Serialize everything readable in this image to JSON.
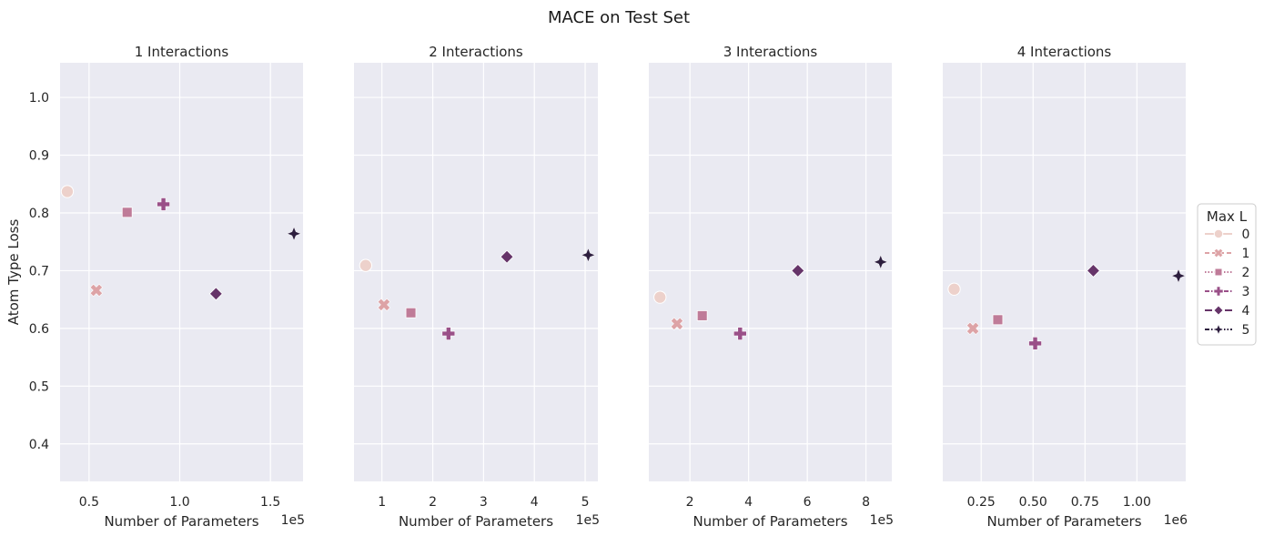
{
  "figure_title": "MACE on Test Set",
  "legend": {
    "title": "Max L",
    "entries": [
      {
        "label": "0",
        "color": "#edd1cb",
        "marker": "circle",
        "dash": "solid"
      },
      {
        "label": "1",
        "color": "#dda3a6",
        "marker": "x",
        "dash": "dashed"
      },
      {
        "label": "2",
        "color": "#bf7b98",
        "marker": "square",
        "dash": "dotted"
      },
      {
        "label": "3",
        "color": "#9a5088",
        "marker": "plus",
        "dash": "dashdot"
      },
      {
        "label": "4",
        "color": "#663469",
        "marker": "diamond",
        "dash": "longdash"
      },
      {
        "label": "5",
        "color": "#2d1e3e",
        "marker": "star4",
        "dash": "dashdotdot"
      }
    ]
  },
  "chart_data": [
    {
      "type": "scatter",
      "title": "1 Interactions",
      "xlabel": "Number of Parameters",
      "ylabel": "Atom Type Loss",
      "x_multiplier_label": "1e5",
      "xlim": [
        0.34,
        1.68
      ],
      "ylim": [
        0.335,
        1.06
      ],
      "xticks": [
        0.5,
        1.0,
        1.5
      ],
      "xtick_labels": [
        "0.5",
        "1.0",
        "1.5"
      ],
      "yticks": [
        0.4,
        0.5,
        0.6,
        0.7,
        0.8,
        0.9,
        1.0
      ],
      "ytick_labels": [
        "0.4",
        "0.5",
        "0.6",
        "0.7",
        "0.8",
        "0.9",
        "1.0"
      ],
      "grid": true,
      "points": [
        {
          "max_l": 0,
          "x": 0.38,
          "y": 0.837
        },
        {
          "max_l": 1,
          "x": 0.54,
          "y": 0.666
        },
        {
          "max_l": 2,
          "x": 0.71,
          "y": 0.801
        },
        {
          "max_l": 3,
          "x": 0.91,
          "y": 0.815
        },
        {
          "max_l": 4,
          "x": 1.2,
          "y": 0.66
        },
        {
          "max_l": 5,
          "x": 1.63,
          "y": 0.764
        }
      ]
    },
    {
      "type": "scatter",
      "title": "2 Interactions",
      "xlabel": "Number of Parameters",
      "ylabel": "",
      "x_multiplier_label": "1e5",
      "xlim": [
        0.45,
        5.25
      ],
      "ylim": [
        0.335,
        1.06
      ],
      "xticks": [
        1,
        2,
        3,
        4,
        5
      ],
      "xtick_labels": [
        "1",
        "2",
        "3",
        "4",
        "5"
      ],
      "yticks": [
        0.4,
        0.5,
        0.6,
        0.7,
        0.8,
        0.9,
        1.0
      ],
      "ytick_labels": [],
      "grid": true,
      "points": [
        {
          "max_l": 0,
          "x": 0.68,
          "y": 0.709
        },
        {
          "max_l": 1,
          "x": 1.04,
          "y": 0.641
        },
        {
          "max_l": 2,
          "x": 1.57,
          "y": 0.627
        },
        {
          "max_l": 3,
          "x": 2.31,
          "y": 0.591
        },
        {
          "max_l": 4,
          "x": 3.46,
          "y": 0.724
        },
        {
          "max_l": 5,
          "x": 5.06,
          "y": 0.727
        }
      ]
    },
    {
      "type": "scatter",
      "title": "3 Interactions",
      "xlabel": "Number of Parameters",
      "ylabel": "",
      "x_multiplier_label": "1e5",
      "xlim": [
        0.6,
        8.88
      ],
      "ylim": [
        0.335,
        1.06
      ],
      "xticks": [
        2,
        4,
        6,
        8
      ],
      "xtick_labels": [
        "2",
        "4",
        "6",
        "8"
      ],
      "yticks": [
        0.4,
        0.5,
        0.6,
        0.7,
        0.8,
        0.9,
        1.0
      ],
      "ytick_labels": [],
      "grid": true,
      "points": [
        {
          "max_l": 0,
          "x": 0.98,
          "y": 0.654
        },
        {
          "max_l": 1,
          "x": 1.56,
          "y": 0.608
        },
        {
          "max_l": 2,
          "x": 2.42,
          "y": 0.622
        },
        {
          "max_l": 3,
          "x": 3.71,
          "y": 0.591
        },
        {
          "max_l": 4,
          "x": 5.68,
          "y": 0.7
        },
        {
          "max_l": 5,
          "x": 8.5,
          "y": 0.715
        }
      ]
    },
    {
      "type": "scatter",
      "title": "4 Interactions",
      "xlabel": "Number of Parameters",
      "ylabel": "",
      "x_multiplier_label": "1e6",
      "xlim": [
        0.065,
        1.235
      ],
      "ylim": [
        0.335,
        1.06
      ],
      "xticks": [
        0.25,
        0.5,
        0.75,
        1.0
      ],
      "xtick_labels": [
        "0.25",
        "0.50",
        "0.75",
        "1.00"
      ],
      "yticks": [
        0.4,
        0.5,
        0.6,
        0.7,
        0.8,
        0.9,
        1.0
      ],
      "ytick_labels": [],
      "grid": true,
      "points": [
        {
          "max_l": 0,
          "x": 0.12,
          "y": 0.668
        },
        {
          "max_l": 1,
          "x": 0.21,
          "y": 0.6
        },
        {
          "max_l": 2,
          "x": 0.33,
          "y": 0.615
        },
        {
          "max_l": 3,
          "x": 0.51,
          "y": 0.574
        },
        {
          "max_l": 4,
          "x": 0.79,
          "y": 0.7
        },
        {
          "max_l": 5,
          "x": 1.2,
          "y": 0.691
        }
      ]
    }
  ]
}
